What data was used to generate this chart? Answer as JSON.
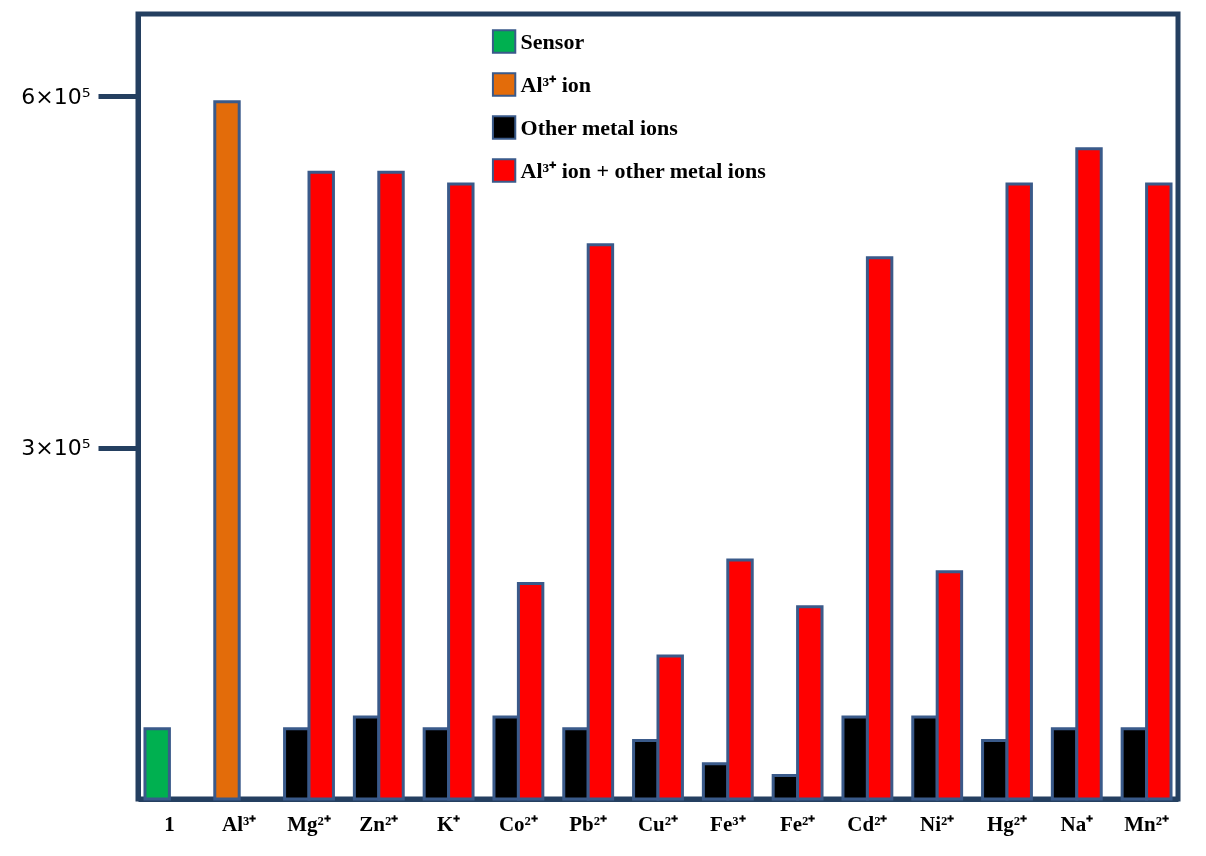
{
  "chart_data": {
    "type": "bar",
    "categories": [
      "1",
      "Al³⁺",
      "Mg²⁺",
      "Zn²⁺",
      "K⁺",
      "Co²⁺",
      "Pb²⁺",
      "Cu²⁺",
      "Fe³⁺",
      "Fe²⁺",
      "Cd²⁺",
      "Ni²⁺",
      "Hg²⁺",
      "Na⁺",
      "Mn²⁺"
    ],
    "series": [
      {
        "name": "Sensor",
        "color": "#00b050",
        "values": [
          60000,
          null,
          null,
          null,
          null,
          null,
          null,
          null,
          null,
          null,
          null,
          null,
          null,
          null,
          null
        ]
      },
      {
        "name": "Al³⁺ ion",
        "color": "#e36c0a",
        "values": [
          null,
          595000,
          null,
          null,
          null,
          null,
          null,
          null,
          null,
          null,
          null,
          null,
          null,
          null,
          null
        ]
      },
      {
        "name": "Other metal ions",
        "color": "#000000",
        "values": [
          null,
          null,
          60000,
          70000,
          60000,
          70000,
          60000,
          50000,
          30000,
          20000,
          70000,
          70000,
          50000,
          60000,
          60000
        ]
      },
      {
        "name": "Al³⁺ ion + other metal ions",
        "color": "#ff0000",
        "values": [
          null,
          null,
          535000,
          535000,
          525000,
          184000,
          473000,
          122000,
          204000,
          164000,
          462000,
          194000,
          525000,
          555000,
          525000
        ]
      }
    ],
    "ylim": [
      0,
      670000
    ],
    "yticks": [
      {
        "value": 300000,
        "label": "3×10⁵"
      },
      {
        "value": 600000,
        "label": "6×10⁵"
      }
    ],
    "grid": false,
    "legend": "top"
  }
}
